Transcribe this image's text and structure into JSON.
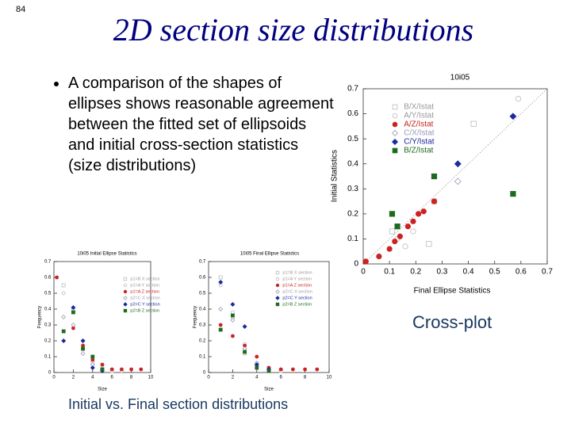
{
  "slide": {
    "page_number": "84",
    "title": "2D section size distributions",
    "bullet": "A comparison of the shapes of ellipses shows reasonable agreement between the fitted set of ellipsoids and initial cross-section statistics (size distributions)",
    "caption_crossplot": "Cross-plot",
    "caption_distributions": "Initial vs. Final section distributions"
  },
  "chart_data": [
    {
      "type": "scatter",
      "title": "10i05",
      "x_label": "Final Ellipse Statistics",
      "y_label": "Initial Statistics",
      "xlim": [
        0,
        0.7
      ],
      "ylim": [
        0,
        0.7
      ],
      "xticks": [
        0,
        0.1,
        0.2,
        0.3,
        0.4,
        0.5,
        0.6,
        0.7
      ],
      "yticks": [
        0,
        0.1,
        0.2,
        0.3,
        0.4,
        0.5,
        0.6,
        0.7
      ],
      "diagonal": true,
      "series": [
        {
          "name": "B/X/Istat",
          "color": "#bbbbbb",
          "marker": "square",
          "filled": false,
          "x": [
            0.42,
            0.25,
            0.11,
            0.27
          ],
          "values": [
            0.56,
            0.08,
            0.13,
            0.25
          ]
        },
        {
          "name": "A/Y/Istat",
          "color": "#bbbbbb",
          "marker": "circle",
          "filled": false,
          "x": [
            0.13,
            0.16,
            0.19,
            0.59
          ],
          "values": [
            0.1,
            0.07,
            0.13,
            0.66
          ]
        },
        {
          "name": "A/Z/Istat",
          "color": "#cc2222",
          "marker": "circle",
          "filled": true,
          "x": [
            0.01,
            0.06,
            0.1,
            0.12,
            0.14,
            0.17,
            0.19,
            0.21,
            0.23,
            0.27
          ],
          "values": [
            0.01,
            0.03,
            0.06,
            0.09,
            0.11,
            0.15,
            0.17,
            0.2,
            0.21,
            0.25
          ]
        },
        {
          "name": "C/X/Istat",
          "color": "#9999bb",
          "marker": "diamond",
          "filled": false,
          "x": [
            0.36
          ],
          "values": [
            0.33
          ]
        },
        {
          "name": "C/Y/Istat",
          "color": "#1a2aa0",
          "marker": "diamond",
          "filled": true,
          "x": [
            0.36,
            0.57
          ],
          "values": [
            0.4,
            0.59
          ]
        },
        {
          "name": "B/Z/Istat",
          "color": "#1e6b1e",
          "marker": "square",
          "filled": true,
          "x": [
            0.11,
            0.13,
            0.27,
            0.57
          ],
          "values": [
            0.2,
            0.15,
            0.35,
            0.28
          ]
        }
      ]
    },
    {
      "type": "scatter",
      "title": "10i05 Initial Ellipse Statistics",
      "x_label": "Size",
      "y_label": "Frequency",
      "xlim": [
        0,
        10
      ],
      "ylim": [
        0,
        0.7
      ],
      "xticks": [
        0,
        2,
        4,
        6,
        8,
        10
      ],
      "yticks": [
        0,
        0.1,
        0.2,
        0.3,
        0.4,
        0.5,
        0.6,
        0.7
      ],
      "series": [
        {
          "name": "p1=B X section",
          "color": "#bbbbbb",
          "marker": "square",
          "filled": false,
          "x": [
            1,
            2,
            3,
            4,
            5,
            6
          ],
          "values": [
            0.55,
            0.38,
            0.15,
            0.06,
            0.02,
            0.01
          ]
        },
        {
          "name": "p1=A Y section",
          "color": "#bbbbbb",
          "marker": "circle",
          "filled": false,
          "x": [
            1,
            2,
            3,
            4,
            5,
            6,
            7
          ],
          "values": [
            0.5,
            0.4,
            0.2,
            0.08,
            0.03,
            0.01,
            0.01
          ]
        },
        {
          "name": "p1=A Z section",
          "color": "#cc2222",
          "marker": "circle",
          "filled": true,
          "x": [
            0.3,
            2,
            3,
            4,
            5,
            6,
            7,
            8,
            9
          ],
          "values": [
            0.6,
            0.28,
            0.17,
            0.08,
            0.05,
            0.02,
            0.02,
            0.02,
            0.02
          ]
        },
        {
          "name": "p2=C X section",
          "color": "#9999bb",
          "marker": "diamond",
          "filled": false,
          "x": [
            1,
            2,
            3,
            4,
            5
          ],
          "values": [
            0.35,
            0.3,
            0.12,
            0.05,
            0.02
          ]
        },
        {
          "name": "p2=C Y section",
          "color": "#1a2aa0",
          "marker": "diamond",
          "filled": true,
          "x": [
            1,
            2,
            3,
            4,
            5
          ],
          "values": [
            0.2,
            0.41,
            0.2,
            0.03,
            0.01
          ]
        },
        {
          "name": "p2=B Z section",
          "color": "#1e6b1e",
          "marker": "square",
          "filled": true,
          "x": [
            1,
            2,
            3,
            4,
            5
          ],
          "values": [
            0.26,
            0.38,
            0.15,
            0.1,
            0.02
          ]
        }
      ]
    },
    {
      "type": "scatter",
      "title": "10i05 Final Ellipse Statistics",
      "x_label": "Size",
      "y_label": "Frequency",
      "xlim": [
        0,
        10
      ],
      "ylim": [
        0,
        0.7
      ],
      "xticks": [
        0,
        2,
        4,
        6,
        8,
        10
      ],
      "yticks": [
        0,
        0.1,
        0.2,
        0.3,
        0.4,
        0.5,
        0.6,
        0.7
      ],
      "series": [
        {
          "name": "p1=B X section",
          "color": "#bbbbbb",
          "marker": "square",
          "filled": false,
          "x": [
            1,
            2,
            3,
            4,
            5,
            6
          ],
          "values": [
            0.6,
            0.35,
            0.12,
            0.05,
            0.02,
            0.01
          ]
        },
        {
          "name": "p1=A Y section",
          "color": "#bbbbbb",
          "marker": "circle",
          "filled": false,
          "x": [
            1,
            2,
            3,
            4,
            5,
            6
          ],
          "values": [
            0.55,
            0.38,
            0.18,
            0.06,
            0.03,
            0.01
          ]
        },
        {
          "name": "p1=A Z section",
          "color": "#cc2222",
          "marker": "circle",
          "filled": true,
          "x": [
            1,
            2,
            3,
            4,
            5,
            6,
            7,
            8,
            9
          ],
          "values": [
            0.3,
            0.23,
            0.17,
            0.1,
            0.03,
            0.02,
            0.02,
            0.02,
            0.02
          ]
        },
        {
          "name": "p2=C X section",
          "color": "#9999bb",
          "marker": "diamond",
          "filled": false,
          "x": [
            1,
            2,
            3,
            4,
            5
          ],
          "values": [
            0.4,
            0.33,
            0.15,
            0.06,
            0.02
          ]
        },
        {
          "name": "p2=C Y section",
          "color": "#1a2aa0",
          "marker": "diamond",
          "filled": true,
          "x": [
            1,
            2,
            3,
            4,
            5
          ],
          "values": [
            0.57,
            0.43,
            0.29,
            0.05,
            0.02
          ]
        },
        {
          "name": "p2=B Z section",
          "color": "#1e6b1e",
          "marker": "square",
          "filled": true,
          "x": [
            1,
            2,
            3,
            4,
            5
          ],
          "values": [
            0.27,
            0.36,
            0.13,
            0.03,
            0.01
          ]
        }
      ]
    }
  ]
}
